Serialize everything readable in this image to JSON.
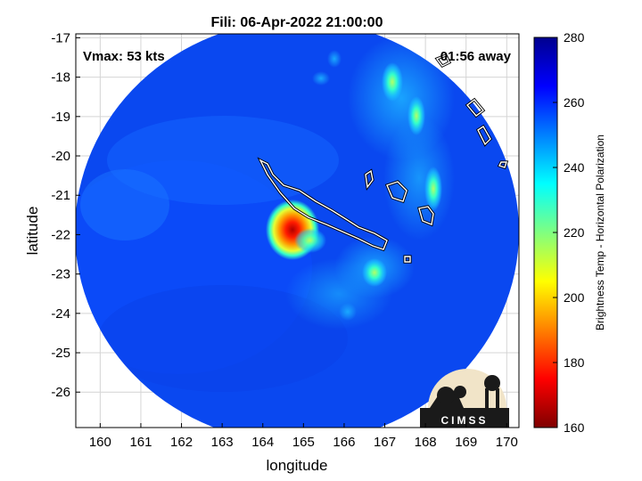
{
  "chart_data": {
    "type": "heatmap",
    "title": "Fili: 06-Apr-2022 21:00:00",
    "xlabel": "longitude",
    "ylabel": "latitude",
    "xlim": [
      159.4,
      170.3
    ],
    "ylim": [
      -26.9,
      -16.9
    ],
    "xticks": [
      160,
      161,
      162,
      163,
      164,
      165,
      166,
      167,
      168,
      169,
      170
    ],
    "yticks": [
      -17,
      -18,
      -19,
      -20,
      -21,
      -22,
      -23,
      -24,
      -25,
      -26
    ],
    "grid": true,
    "colorbar": {
      "label": "Brightness Temp - Horizontal Polarization",
      "range": [
        160,
        280
      ],
      "ticks": [
        160,
        180,
        200,
        220,
        240,
        260,
        280
      ],
      "colormap": [
        "#7f0000",
        "#ff0000",
        "#ff8000",
        "#ffff00",
        "#80ff80",
        "#00ffff",
        "#0080ff",
        "#0000ff",
        "#00008f"
      ]
    },
    "annotations": {
      "vmax": "Vmax: 53 kts",
      "time_offset": "01:56 away"
    },
    "features": {
      "storm_center_lon": 164.6,
      "storm_center_lat": -21.9,
      "min_brightness_temp": 170,
      "background_brightness_temp": 262
    }
  },
  "logo": {
    "text": "CIMSS"
  }
}
